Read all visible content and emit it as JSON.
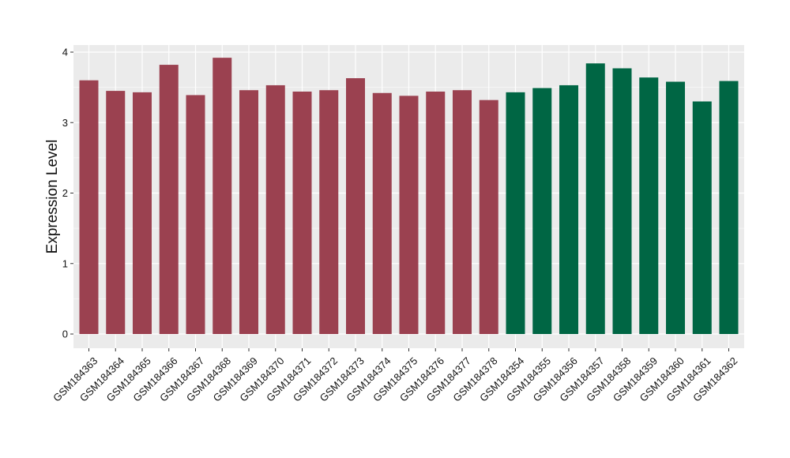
{
  "chart_data": {
    "type": "bar",
    "title": "",
    "xlabel": "",
    "ylabel": "Expression Level",
    "ylim": [
      0,
      4.08
    ],
    "yticks": [
      0,
      1,
      2,
      3,
      4
    ],
    "grid": true,
    "background_color": "#EBEBEB",
    "grid_color": "#FFFFFF",
    "colors": {
      "group_1": "#9B4150",
      "group_2": "#006644"
    },
    "categories": [
      "GSM184363",
      "GSM184364",
      "GSM184365",
      "GSM184366",
      "GSM184367",
      "GSM184368",
      "GSM184369",
      "GSM184370",
      "GSM184371",
      "GSM184372",
      "GSM184373",
      "GSM184374",
      "GSM184375",
      "GSM184376",
      "GSM184377",
      "GSM184378",
      "GSM184354",
      "GSM184355",
      "GSM184356",
      "GSM184357",
      "GSM184358",
      "GSM184359",
      "GSM184360",
      "GSM184361",
      "GSM184362"
    ],
    "values": [
      3.6,
      3.45,
      3.43,
      3.82,
      3.39,
      3.92,
      3.46,
      3.53,
      3.44,
      3.46,
      3.63,
      3.42,
      3.38,
      3.44,
      3.46,
      3.32,
      3.43,
      3.49,
      3.53,
      3.84,
      3.77,
      3.64,
      3.58,
      3.3,
      3.59
    ],
    "groups": [
      "group_1",
      "group_1",
      "group_1",
      "group_1",
      "group_1",
      "group_1",
      "group_1",
      "group_1",
      "group_1",
      "group_1",
      "group_1",
      "group_1",
      "group_1",
      "group_1",
      "group_1",
      "group_1",
      "group_2",
      "group_2",
      "group_2",
      "group_2",
      "group_2",
      "group_2",
      "group_2",
      "group_2",
      "group_2"
    ]
  }
}
